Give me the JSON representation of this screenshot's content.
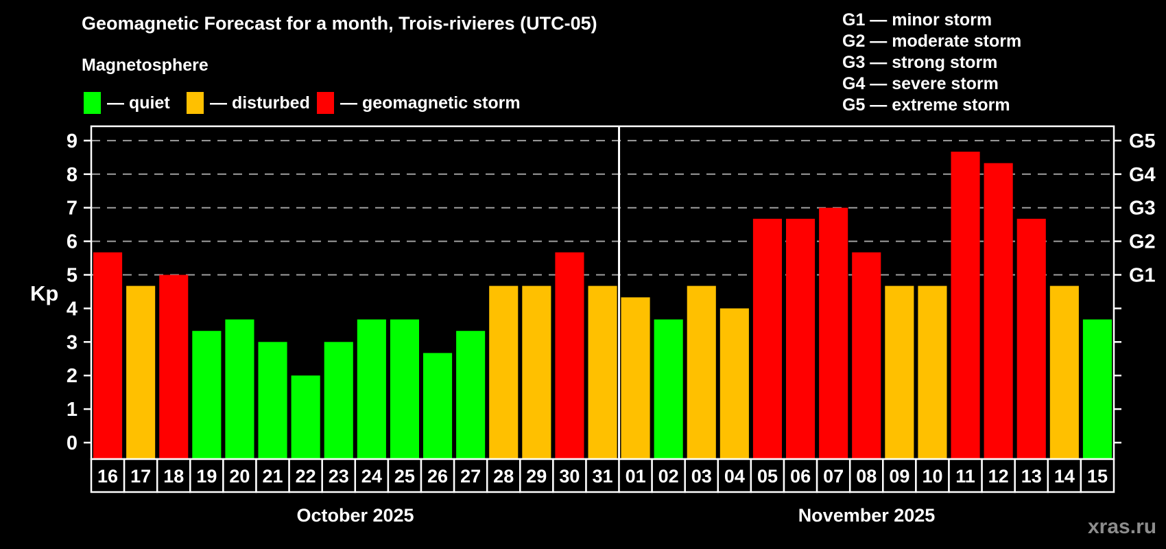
{
  "title": "Geomagnetic Forecast for a month, Trois-rivieres (UTC-05)",
  "subtitle": "Magnetosphere",
  "legend": {
    "items": [
      {
        "label": "— quiet",
        "color": "#00ff00",
        "status": "quiet"
      },
      {
        "label": "— disturbed",
        "color": "#ffc000",
        "status": "disturbed"
      },
      {
        "label": "— geomagnetic storm",
        "color": "#ff0000",
        "status": "storm"
      }
    ]
  },
  "g_scale": {
    "items": [
      {
        "text": "G1 — minor storm"
      },
      {
        "text": "G2 — moderate storm"
      },
      {
        "text": "G3 — strong storm"
      },
      {
        "text": "G4 — severe storm"
      },
      {
        "text": "G5 — extreme storm"
      }
    ]
  },
  "watermark": "xras.ru",
  "chart_data": {
    "type": "bar",
    "ylabel": "Kp",
    "ylim": [
      -0.5,
      9.5
    ],
    "yticks": [
      0,
      1,
      2,
      3,
      4,
      5,
      6,
      7,
      8,
      9
    ],
    "gridlines_at": [
      5,
      6,
      7,
      8,
      9
    ],
    "grid": "dashed horizontal lines at Kp 5 through 9 only",
    "legend_position": "top-left",
    "right_axis": [
      {
        "kp": 5,
        "label": "G1"
      },
      {
        "kp": 6,
        "label": "G2"
      },
      {
        "kp": 7,
        "label": "G3"
      },
      {
        "kp": 8,
        "label": "G4"
      },
      {
        "kp": 9,
        "label": "G5"
      }
    ],
    "colors": {
      "quiet": "#00ff00",
      "disturbed": "#ffc000",
      "storm": "#ff0000"
    },
    "months": [
      {
        "label": "October 2025",
        "days": [
          {
            "day": "16",
            "kp": 5.67,
            "status": "storm"
          },
          {
            "day": "17",
            "kp": 4.67,
            "status": "disturbed"
          },
          {
            "day": "18",
            "kp": 5.0,
            "status": "storm"
          },
          {
            "day": "19",
            "kp": 3.33,
            "status": "quiet"
          },
          {
            "day": "20",
            "kp": 3.67,
            "status": "quiet"
          },
          {
            "day": "21",
            "kp": 3.0,
            "status": "quiet"
          },
          {
            "day": "22",
            "kp": 2.0,
            "status": "quiet"
          },
          {
            "day": "23",
            "kp": 3.0,
            "status": "quiet"
          },
          {
            "day": "24",
            "kp": 3.67,
            "status": "quiet"
          },
          {
            "day": "25",
            "kp": 3.67,
            "status": "quiet"
          },
          {
            "day": "26",
            "kp": 2.67,
            "status": "quiet"
          },
          {
            "day": "27",
            "kp": 3.33,
            "status": "quiet"
          },
          {
            "day": "28",
            "kp": 4.67,
            "status": "disturbed"
          },
          {
            "day": "29",
            "kp": 4.67,
            "status": "disturbed"
          },
          {
            "day": "30",
            "kp": 5.67,
            "status": "storm"
          },
          {
            "day": "31",
            "kp": 4.67,
            "status": "disturbed"
          }
        ]
      },
      {
        "label": "November 2025",
        "days": [
          {
            "day": "01",
            "kp": 4.33,
            "status": "disturbed"
          },
          {
            "day": "02",
            "kp": 3.67,
            "status": "quiet"
          },
          {
            "day": "03",
            "kp": 4.67,
            "status": "disturbed"
          },
          {
            "day": "04",
            "kp": 4.0,
            "status": "disturbed"
          },
          {
            "day": "05",
            "kp": 6.67,
            "status": "storm"
          },
          {
            "day": "06",
            "kp": 6.67,
            "status": "storm"
          },
          {
            "day": "07",
            "kp": 7.0,
            "status": "storm"
          },
          {
            "day": "08",
            "kp": 5.67,
            "status": "storm"
          },
          {
            "day": "09",
            "kp": 4.67,
            "status": "disturbed"
          },
          {
            "day": "10",
            "kp": 4.67,
            "status": "disturbed"
          },
          {
            "day": "11",
            "kp": 8.67,
            "status": "storm"
          },
          {
            "day": "12",
            "kp": 8.33,
            "status": "storm"
          },
          {
            "day": "13",
            "kp": 6.67,
            "status": "storm"
          },
          {
            "day": "14",
            "kp": 4.67,
            "status": "disturbed"
          },
          {
            "day": "15",
            "kp": 3.67,
            "status": "quiet"
          }
        ]
      }
    ]
  }
}
